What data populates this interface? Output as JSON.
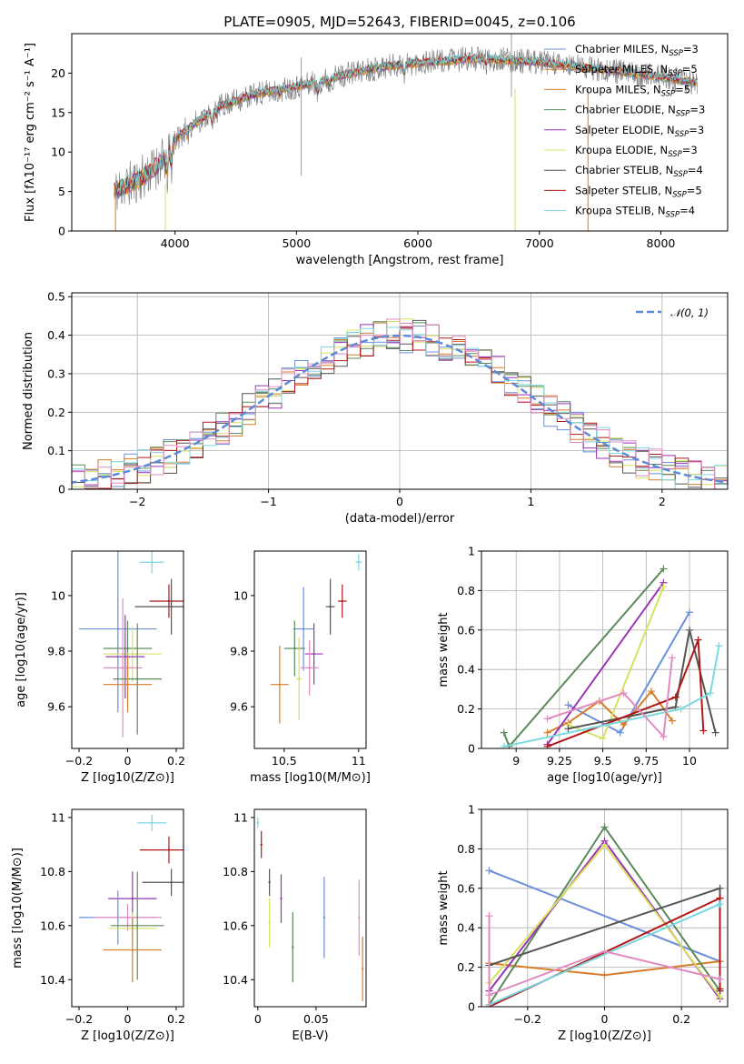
{
  "figure": {
    "title": "PLATE=0905, MJD=52643, FIBERID=0045, z=0.106"
  },
  "colors": {
    "chabrier_miles": "#6b8fd9",
    "salpeter_miles": "#d87c2a",
    "kroupa_miles": "#d87c2a",
    "chabrier_elodie": "#5a8a5a",
    "salpeter_elodie": "#9a35b5",
    "kroupa_elodie": "#d8e060",
    "chabrier_stelib": "#555555",
    "salpeter_stelib": "#b01818",
    "kroupa_stelib": "#7ad8e0",
    "pink": "#e08bc0",
    "gauss": "#5b8bd8",
    "spectrum_gray": "#777777"
  },
  "chart_data": [
    {
      "id": "spectrum",
      "type": "line",
      "title": "PLATE=0905, MJD=52643, FIBERID=0045, z=0.106",
      "xlabel": "wavelength [Angstrom, rest frame]",
      "ylabel": "Flux [fλ10⁻¹⁷ erg cm⁻² s⁻¹ A⁻¹]",
      "xlim": [
        3150,
        8550
      ],
      "ylim": [
        0,
        25
      ],
      "xticks": [
        4000,
        5000,
        6000,
        7000,
        8000
      ],
      "yticks": [
        0,
        5,
        10,
        15,
        20
      ],
      "grid": false,
      "legend_position": "top-right",
      "continuum": {
        "x": [
          3500,
          3600,
          3700,
          3800,
          3900,
          4000,
          4100,
          4200,
          4300,
          4400,
          4500,
          4600,
          4700,
          4800,
          4900,
          5000,
          5200,
          5400,
          5600,
          5800,
          6000,
          6200,
          6400,
          6600,
          6800,
          7000,
          7200,
          7400,
          7600,
          7800,
          8000,
          8200,
          8300
        ],
        "y": [
          5.0,
          5.8,
          6.5,
          7.5,
          9.0,
          11.5,
          13.0,
          14.0,
          15.0,
          16.0,
          16.5,
          17.0,
          17.5,
          17.7,
          18.0,
          18.3,
          19.0,
          19.8,
          20.5,
          21.0,
          21.3,
          21.5,
          21.8,
          21.8,
          21.6,
          21.4,
          21.0,
          20.7,
          20.3,
          19.9,
          19.5,
          19.0,
          18.8
        ]
      },
      "series": [
        {
          "name": "Chabrier MILES, N_SSP=3",
          "label_main": "Chabrier MILES, N",
          "label_sub": "SSP",
          "label_end": "=3",
          "color_key": "chabrier_miles"
        },
        {
          "name": "Salpeter MILES, N_SSP=5",
          "label_main": "Salpeter MILES, N",
          "label_sub": "SSP",
          "label_end": "=5",
          "color_key": "salpeter_miles"
        },
        {
          "name": "Kroupa MILES, N_SSP=5",
          "label_main": "Kroupa MILES, N",
          "label_sub": "SSP",
          "label_end": "=5",
          "color_key": "kroupa_miles"
        },
        {
          "name": "Chabrier ELODIE, N_SSP=3",
          "label_main": "Chabrier ELODIE, N",
          "label_sub": "SSP",
          "label_end": "=3",
          "color_key": "chabrier_elodie"
        },
        {
          "name": "Salpeter ELODIE, N_SSP=3",
          "label_main": "Salpeter ELODIE, N",
          "label_sub": "SSP",
          "label_end": "=3",
          "color_key": "salpeter_elodie"
        },
        {
          "name": "Kroupa ELODIE, N_SSP=3",
          "label_main": "Kroupa ELODIE, N",
          "label_sub": "SSP",
          "label_end": "=3",
          "color_key": "kroupa_elodie"
        },
        {
          "name": "Chabrier STELIB, N_SSP=4",
          "label_main": "Chabrier STELIB, N",
          "label_sub": "SSP",
          "label_end": "=4",
          "color_key": "chabrier_stelib"
        },
        {
          "name": "Salpeter STELIB, N_SSP=5",
          "label_main": "Salpeter STELIB, N",
          "label_sub": "SSP",
          "label_end": "=5",
          "color_key": "salpeter_stelib"
        },
        {
          "name": "Kroupa STELIB, N_SSP=4",
          "label_main": "Kroupa STELIB, N",
          "label_sub": "SSP",
          "label_end": "=4",
          "color_key": "kroupa_stelib"
        }
      ],
      "drop_lines": [
        {
          "x": 3510,
          "y": 0,
          "color_key": "salpeter_miles"
        },
        {
          "x": 3920,
          "y": 0,
          "color_key": "kroupa_elodie"
        },
        {
          "x": 6800,
          "y": 0,
          "color_key": "kroupa_elodie"
        },
        {
          "x": 7400,
          "y": 0,
          "color_key": "salpeter_miles"
        }
      ]
    },
    {
      "id": "residuals",
      "type": "line",
      "xlabel": "(data-model)/error",
      "ylabel": "Normed distribution",
      "xlim": [
        -2.5,
        2.5
      ],
      "ylim": [
        0,
        0.51
      ],
      "xticks": [
        -2,
        -1,
        0,
        1,
        2
      ],
      "yticks": [
        0.0,
        0.1,
        0.2,
        0.3,
        0.4,
        0.5
      ],
      "grid": true,
      "legend_position": "top-right",
      "gauss_legend": "𝒩(0, 1)",
      "histogram_series_colors": [
        "chabrier_miles",
        "salpeter_miles",
        "chabrier_elodie",
        "salpeter_elodie",
        "kroupa_elodie",
        "chabrier_stelib",
        "salpeter_stelib",
        "kroupa_stelib",
        "pink"
      ]
    },
    {
      "id": "age_vs_Z",
      "type": "scatter",
      "xlabel": "Z [log10(Z/Z⊙)]",
      "ylabel": "age  [log10(age/yr)]",
      "xlim": [
        -0.23,
        0.23
      ],
      "ylim": [
        9.45,
        10.16
      ],
      "xticks": [
        -0.2,
        0.0,
        0.2
      ],
      "yticks": [
        9.6,
        9.8,
        10.0
      ],
      "points": [
        {
          "x": 0.1,
          "y": 10.12,
          "xerr": 0.05,
          "yerr": 0.04,
          "color_key": "kroupa_stelib"
        },
        {
          "x": 0.17,
          "y": 9.98,
          "xerr": 0.08,
          "yerr": 0.06,
          "color_key": "salpeter_stelib"
        },
        {
          "x": 0.18,
          "y": 9.96,
          "xerr": 0.15,
          "yerr": 0.1,
          "color_key": "chabrier_stelib"
        },
        {
          "x": -0.04,
          "y": 9.88,
          "xerr": 0.16,
          "yerr": 0.3,
          "color_key": "chabrier_miles"
        },
        {
          "x": 0.0,
          "y": 9.81,
          "xerr": 0.1,
          "yerr": 0.1,
          "color_key": "chabrier_elodie"
        },
        {
          "x": 0.02,
          "y": 9.79,
          "xerr": 0.12,
          "yerr": 0.1,
          "color_key": "kroupa_elodie"
        },
        {
          "x": -0.01,
          "y": 9.78,
          "xerr": 0.08,
          "yerr": 0.15,
          "color_key": "salpeter_elodie"
        },
        {
          "x": -0.02,
          "y": 9.74,
          "xerr": 0.08,
          "yerr": 0.25,
          "color_key": "pink"
        },
        {
          "x": 0.04,
          "y": 9.7,
          "xerr": 0.1,
          "yerr": 0.2,
          "color_key": "chabrier_elodie"
        },
        {
          "x": 0.0,
          "y": 9.68,
          "xerr": 0.1,
          "yerr": 0.1,
          "color_key": "salpeter_miles"
        }
      ]
    },
    {
      "id": "age_vs_mass",
      "type": "scatter",
      "xlabel": "mass [log10(M/M⊙)]",
      "ylabel": "",
      "xlim": [
        10.3,
        11.05
      ],
      "ylim": [
        9.45,
        10.16
      ],
      "xticks": [
        10.5,
        11.0
      ],
      "yticks": [
        9.6,
        9.8,
        10.0
      ],
      "points": [
        {
          "x": 11.0,
          "y": 10.12,
          "xerr": 0.02,
          "yerr": 0.03,
          "color_key": "kroupa_stelib"
        },
        {
          "x": 10.89,
          "y": 9.98,
          "xerr": 0.03,
          "yerr": 0.06,
          "color_key": "salpeter_stelib"
        },
        {
          "x": 10.81,
          "y": 9.96,
          "xerr": 0.03,
          "yerr": 0.1,
          "color_key": "chabrier_stelib"
        },
        {
          "x": 10.63,
          "y": 9.88,
          "xerr": 0.07,
          "yerr": 0.15,
          "color_key": "chabrier_miles"
        },
        {
          "x": 10.57,
          "y": 9.81,
          "xerr": 0.07,
          "yerr": 0.1,
          "color_key": "chabrier_elodie"
        },
        {
          "x": 10.7,
          "y": 9.79,
          "xerr": 0.06,
          "yerr": 0.11,
          "color_key": "salpeter_elodie"
        },
        {
          "x": 10.67,
          "y": 9.74,
          "xerr": 0.06,
          "yerr": 0.1,
          "color_key": "pink"
        },
        {
          "x": 10.6,
          "y": 9.7,
          "xerr": 0.02,
          "yerr": 0.15,
          "color_key": "kroupa_elodie"
        },
        {
          "x": 10.47,
          "y": 9.68,
          "xerr": 0.06,
          "yerr": 0.14,
          "color_key": "salpeter_miles"
        }
      ]
    },
    {
      "id": "weight_vs_age",
      "type": "line",
      "xlabel": "age  [log10(age/yr)]",
      "ylabel": "mass weight",
      "xlim": [
        8.8,
        10.22
      ],
      "ylim": [
        0.0,
        1.0
      ],
      "xticks": [
        9.0,
        9.25,
        9.5,
        9.75,
        10.0
      ],
      "yticks": [
        0.0,
        0.2,
        0.4,
        0.6,
        0.8,
        1.0
      ],
      "grid": true,
      "series": [
        {
          "color_key": "chabrier_miles",
          "x": [
            9.3,
            9.6,
            10.0
          ],
          "y": [
            0.22,
            0.08,
            0.69
          ]
        },
        {
          "color_key": "salpeter_miles",
          "x": [
            9.18,
            9.3,
            9.48,
            9.62,
            9.78,
            9.9
          ],
          "y": [
            0.08,
            0.13,
            0.24,
            0.12,
            0.29,
            0.14
          ]
        },
        {
          "color_key": "chabrier_elodie",
          "x": [
            8.93,
            8.96,
            9.85
          ],
          "y": [
            0.08,
            0.01,
            0.91
          ]
        },
        {
          "color_key": "salpeter_elodie",
          "x": [
            9.18,
            9.85
          ],
          "y": [
            0.02,
            0.84
          ]
        },
        {
          "color_key": "kroupa_elodie",
          "x": [
            9.3,
            9.5,
            9.85
          ],
          "y": [
            0.12,
            0.05,
            0.82
          ]
        },
        {
          "color_key": "chabrier_stelib",
          "x": [
            9.3,
            9.92,
            10.0,
            10.15
          ],
          "y": [
            0.1,
            0.21,
            0.6,
            0.08
          ]
        },
        {
          "color_key": "salpeter_stelib",
          "x": [
            9.18,
            9.92,
            10.05,
            10.08
          ],
          "y": [
            0.01,
            0.26,
            0.55,
            0.09
          ]
        },
        {
          "color_key": "kroupa_stelib",
          "x": [
            8.93,
            9.95,
            10.12,
            10.17
          ],
          "y": [
            0.01,
            0.2,
            0.28,
            0.52
          ]
        },
        {
          "color_key": "pink",
          "x": [
            9.18,
            9.62,
            9.85,
            9.9
          ],
          "y": [
            0.15,
            0.28,
            0.06,
            0.46
          ]
        }
      ]
    },
    {
      "id": "mass_vs_Z",
      "type": "scatter",
      "xlabel": "Z [log10(Z/Z⊙)]",
      "ylabel": "mass [log10(M/M⊙)]",
      "xlim": [
        -0.23,
        0.23
      ],
      "ylim": [
        10.3,
        11.03
      ],
      "xticks": [
        -0.2,
        0.0,
        0.2
      ],
      "yticks": [
        10.4,
        10.6,
        10.8,
        11.0
      ],
      "points": [
        {
          "x": 0.1,
          "y": 10.98,
          "xerr": 0.06,
          "yerr": 0.03,
          "color_key": "kroupa_stelib"
        },
        {
          "x": 0.17,
          "y": 10.88,
          "xerr": 0.12,
          "yerr": 0.05,
          "color_key": "salpeter_stelib"
        },
        {
          "x": 0.18,
          "y": 10.76,
          "xerr": 0.12,
          "yerr": 0.05,
          "color_key": "chabrier_stelib"
        },
        {
          "x": 0.02,
          "y": 10.7,
          "xerr": 0.1,
          "yerr": 0.1,
          "color_key": "salpeter_elodie"
        },
        {
          "x": -0.04,
          "y": 10.63,
          "xerr": 0.16,
          "yerr": 0.1,
          "color_key": "chabrier_miles"
        },
        {
          "x": 0.0,
          "y": 10.63,
          "xerr": 0.14,
          "yerr": 0.05,
          "color_key": "pink"
        },
        {
          "x": 0.02,
          "y": 10.59,
          "xerr": 0.1,
          "yerr": 0.06,
          "color_key": "kroupa_elodie"
        },
        {
          "x": 0.04,
          "y": 10.6,
          "xerr": 0.11,
          "yerr": 0.2,
          "color_key": "chabrier_elodie"
        },
        {
          "x": 0.02,
          "y": 10.51,
          "xerr": 0.12,
          "yerr": 0.12,
          "color_key": "salpeter_miles"
        }
      ]
    },
    {
      "id": "mass_vs_EBV",
      "type": "scatter",
      "xlabel": "E(B-V)",
      "ylabel": "",
      "xlim": [
        -0.003,
        0.093
      ],
      "ylim": [
        10.3,
        11.03
      ],
      "xticks": [
        0.0,
        0.05
      ],
      "yticks": [
        10.4,
        10.6,
        10.8,
        11.0
      ],
      "points": [
        {
          "x": 0.0,
          "y": 10.98,
          "xerr": 0,
          "yerr": 0.02,
          "color_key": "kroupa_stelib"
        },
        {
          "x": 0.003,
          "y": 10.9,
          "xerr": 0,
          "yerr": 0.05,
          "color_key": "salpeter_stelib"
        },
        {
          "x": 0.01,
          "y": 10.76,
          "xerr": 0,
          "yerr": 0.05,
          "color_key": "chabrier_stelib"
        },
        {
          "x": 0.01,
          "y": 10.61,
          "xerr": 0,
          "yerr": 0.09,
          "color_key": "kroupa_elodie"
        },
        {
          "x": 0.02,
          "y": 10.7,
          "xerr": 0,
          "yerr": 0.09,
          "color_key": "salpeter_elodie"
        },
        {
          "x": 0.03,
          "y": 10.52,
          "xerr": 0,
          "yerr": 0.13,
          "color_key": "chabrier_elodie"
        },
        {
          "x": 0.057,
          "y": 10.63,
          "xerr": 0,
          "yerr": 0.15,
          "color_key": "chabrier_miles"
        },
        {
          "x": 0.087,
          "y": 10.63,
          "xerr": 0,
          "yerr": 0.14,
          "color_key": "pink"
        },
        {
          "x": 0.09,
          "y": 10.44,
          "xerr": 0,
          "yerr": 0.12,
          "color_key": "salpeter_miles"
        }
      ]
    },
    {
      "id": "weight_vs_Z",
      "type": "line",
      "xlabel": "Z [log10(Z/Z⊙)]",
      "ylabel": "mass weight",
      "xlim": [
        -0.32,
        0.32
      ],
      "ylim": [
        0.0,
        1.0
      ],
      "xticks": [
        -0.2,
        0.0,
        0.2
      ],
      "yticks": [
        0.0,
        0.2,
        0.4,
        0.6,
        0.8,
        1.0
      ],
      "grid": true,
      "series": [
        {
          "color_key": "chabrier_miles",
          "x": [
            -0.3,
            0.3
          ],
          "y": [
            0.69,
            0.23
          ]
        },
        {
          "color_key": "salpeter_miles",
          "x": [
            -0.3,
            0.0,
            0.3
          ],
          "y": [
            0.22,
            0.16,
            0.23
          ]
        },
        {
          "color_key": "chabrier_elodie",
          "x": [
            -0.3,
            0.0,
            0.3
          ],
          "y": [
            0.01,
            0.91,
            0.08
          ]
        },
        {
          "color_key": "salpeter_elodie",
          "x": [
            -0.3,
            0.0,
            0.3
          ],
          "y": [
            0.08,
            0.84,
            0.04
          ]
        },
        {
          "color_key": "kroupa_elodie",
          "x": [
            -0.3,
            0.0,
            0.3
          ],
          "y": [
            0.12,
            0.82,
            0.05
          ]
        },
        {
          "color_key": "chabrier_stelib",
          "x": [
            -0.3,
            0.3,
            0.3
          ],
          "y": [
            0.21,
            0.6,
            0.08
          ]
        },
        {
          "color_key": "salpeter_stelib",
          "x": [
            -0.3,
            0.3,
            0.3
          ],
          "y": [
            0.0,
            0.55,
            0.09
          ]
        },
        {
          "color_key": "kroupa_stelib",
          "x": [
            -0.3,
            0.3
          ],
          "y": [
            0.01,
            0.52
          ]
        },
        {
          "color_key": "pink",
          "x": [
            -0.3,
            0.0,
            0.3
          ],
          "y": [
            0.06,
            0.28,
            0.14
          ]
        },
        {
          "color_key": "pink",
          "x": [
            -0.3,
            -0.3
          ],
          "y": [
            0.0,
            0.46
          ]
        }
      ]
    }
  ]
}
